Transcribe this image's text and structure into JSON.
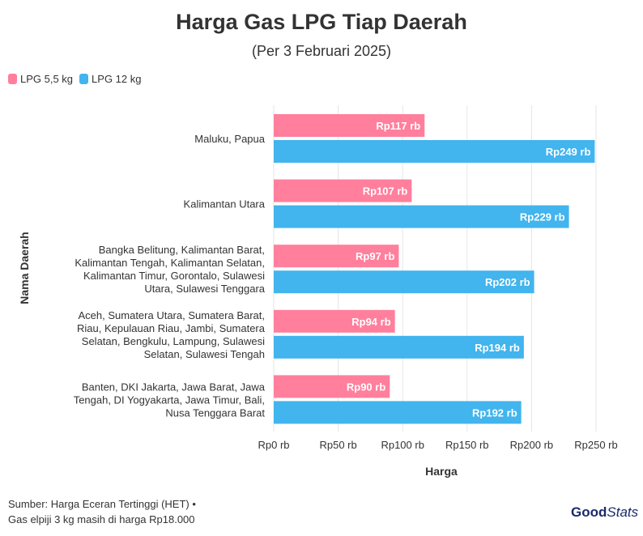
{
  "chart_data": {
    "type": "bar",
    "orientation": "horizontal",
    "title": "Harga Gas LPG Tiap Daerah",
    "subtitle": "(Per 3 Februari 2025)",
    "xlabel": "Harga",
    "ylabel": "Nama Daerah",
    "xlim": [
      0,
      250
    ],
    "x_ticks": [
      0,
      50,
      100,
      150,
      200,
      250
    ],
    "x_tick_labels": [
      "Rp0 rb",
      "Rp50 rb",
      "Rp100 rb",
      "Rp150 rb",
      "Rp200 rb",
      "Rp250 rb"
    ],
    "grid": true,
    "legend_position": "top-left",
    "categories": [
      [
        "Maluku, Papua"
      ],
      [
        "Kalimantan Utara"
      ],
      [
        "Bangka Belitung, Kalimantan Barat,",
        "Kalimantan Tengah, Kalimantan Selatan,",
        "Kalimantan Timur, Gorontalo, Sulawesi",
        "Utara, Sulawesi Tenggara"
      ],
      [
        "Aceh, Sumatera Utara, Sumatera Barat,",
        "Riau, Kepulauan Riau, Jambi, Sumatera",
        "Selatan, Bengkulu, Lampung, Sulawesi",
        "Selatan, Sulawesi Tengah"
      ],
      [
        "Banten, DKI Jakarta, Jawa Barat, Jawa",
        "Tengah, DI Yogyakarta, Jawa Timur, Bali,",
        "Nusa Tenggara Barat"
      ]
    ],
    "series": [
      {
        "name": "LPG 5,5 kg",
        "color": "#ff7f9c",
        "values": [
          117,
          107,
          97,
          94,
          90
        ],
        "labels": [
          "Rp117 rb",
          "Rp107 rb",
          "Rp97 rb",
          "Rp94 rb",
          "Rp90 rb"
        ]
      },
      {
        "name": "LPG 12 kg",
        "color": "#42b4ee",
        "values": [
          249,
          229,
          202,
          194,
          192
        ],
        "labels": [
          "Rp249 rb",
          "Rp229 rb",
          "Rp202 rb",
          "Rp194 rb",
          "Rp192 rb"
        ]
      }
    ]
  },
  "footer": {
    "line1": "Sumber: Harga Eceran Tertinggi (HET) •",
    "line2": "Gas elpiji 3 kg masih di harga Rp18.000"
  },
  "logo": {
    "good": "Good",
    "stats": "Stats"
  }
}
